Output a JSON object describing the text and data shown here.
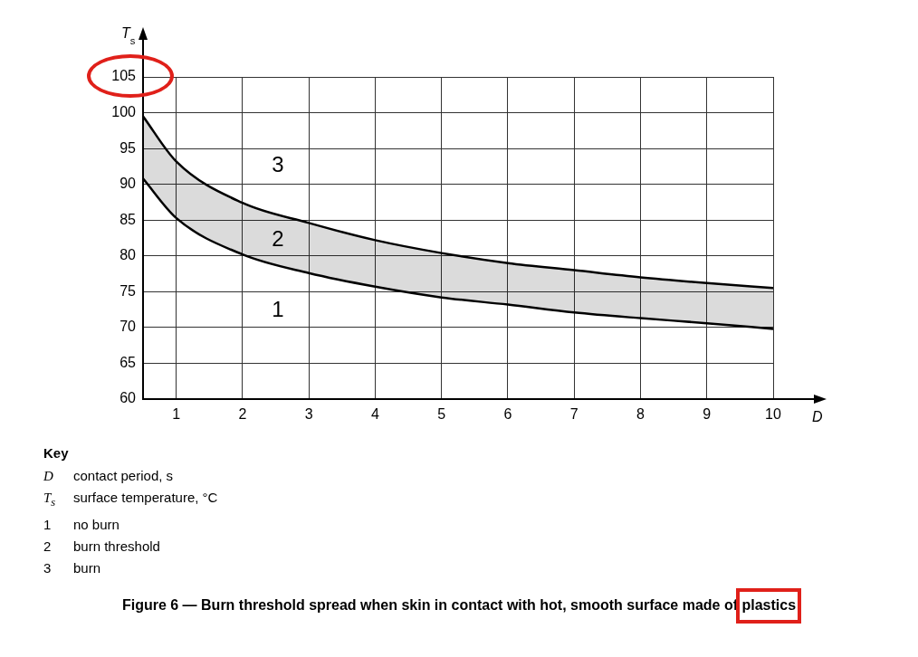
{
  "chart_data": {
    "type": "line",
    "title": "Figure 6 — Burn threshold spread when skin in contact with hot, smooth surface made of plastics",
    "xlabel": "D",
    "ylabel": "T$_{s}$",
    "x": [
      0.5,
      1,
      2,
      3,
      4,
      5,
      6,
      7,
      8,
      9,
      10
    ],
    "series": [
      {
        "type": "line",
        "color": "#000000",
        "values": [
          90.8,
          85.3,
          80.2,
          77.6,
          75.7,
          74.2,
          73.2,
          72.1,
          71.3,
          70.6,
          69.8
        ]
      },
      {
        "type": "area",
        "color": "#000000",
        "values": [
          99.5,
          93.2,
          87.4,
          84.6,
          82.2,
          80.4,
          79.0,
          78.0,
          77.0,
          76.2,
          75.5
        ]
      }
    ],
    "xlim": [
      0.5,
      10
    ],
    "xticks": [
      1,
      2,
      3,
      4,
      5,
      6,
      7,
      8,
      9,
      10
    ],
    "ylim": [
      60,
      105
    ],
    "yticks": [
      60,
      65,
      70,
      75,
      80,
      85,
      90,
      95,
      100,
      105
    ],
    "grid": true,
    "legend": false,
    "marker": "none",
    "line_style": "solid",
    "annotations": [
      "3",
      "2",
      "1",
      "Key",
      "D contact period, s",
      "T$_{s}$ surface temperature, °C",
      "1 no burn",
      "2 burn threshold",
      "3 burn"
    ]
  }
}
